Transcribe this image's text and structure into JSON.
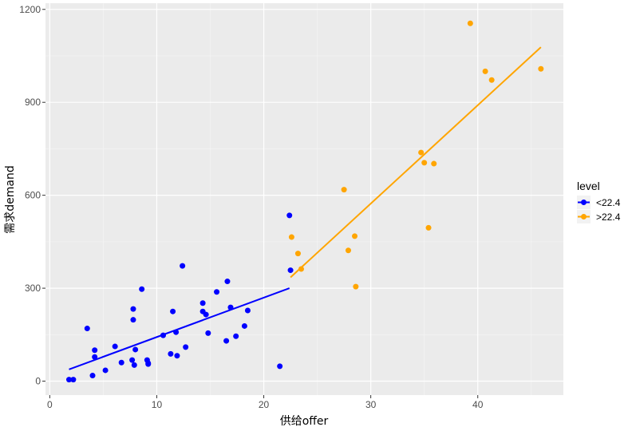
{
  "chart_data": {
    "type": "scatter",
    "xlabel": "供给offer",
    "ylabel": "需求demand",
    "xlim": [
      -0.4,
      48
    ],
    "ylim": [
      -45,
      1220
    ],
    "x_ticks": [
      0,
      10,
      20,
      30,
      40
    ],
    "y_ticks": [
      0,
      300,
      600,
      900,
      1200
    ],
    "grid": true,
    "legend": {
      "title": "level",
      "position": "right"
    },
    "series": [
      {
        "name": "<22.4",
        "color": "#0000FF",
        "points": [
          [
            1.8,
            5
          ],
          [
            2.2,
            5
          ],
          [
            3.5,
            170
          ],
          [
            4.0,
            18
          ],
          [
            4.2,
            100
          ],
          [
            4.2,
            78
          ],
          [
            5.2,
            35
          ],
          [
            6.1,
            112
          ],
          [
            6.7,
            60
          ],
          [
            7.7,
            68
          ],
          [
            7.8,
            233
          ],
          [
            7.8,
            198
          ],
          [
            7.9,
            52
          ],
          [
            8.0,
            102
          ],
          [
            8.6,
            297
          ],
          [
            9.1,
            68
          ],
          [
            9.2,
            58
          ],
          [
            9.2,
            55
          ],
          [
            10.6,
            148
          ],
          [
            11.3,
            88
          ],
          [
            11.5,
            225
          ],
          [
            11.8,
            158
          ],
          [
            11.9,
            82
          ],
          [
            12.4,
            372
          ],
          [
            12.7,
            110
          ],
          [
            14.3,
            252
          ],
          [
            14.3,
            225
          ],
          [
            14.6,
            215
          ],
          [
            14.8,
            155
          ],
          [
            15.6,
            288
          ],
          [
            16.5,
            130
          ],
          [
            16.6,
            322
          ],
          [
            16.9,
            238
          ],
          [
            17.4,
            145
          ],
          [
            18.2,
            178
          ],
          [
            18.5,
            228
          ],
          [
            21.5,
            48
          ],
          [
            22.4,
            535
          ],
          [
            22.5,
            358
          ]
        ],
        "trend": {
          "x": [
            1.8,
            22.4
          ],
          "y": [
            38,
            300
          ]
        }
      },
      {
        "name": ">22.4",
        "color": "#FFA500",
        "points": [
          [
            22.6,
            465
          ],
          [
            23.2,
            412
          ],
          [
            23.5,
            362
          ],
          [
            27.5,
            618
          ],
          [
            27.9,
            422
          ],
          [
            28.5,
            468
          ],
          [
            28.6,
            305
          ],
          [
            34.7,
            738
          ],
          [
            35.0,
            705
          ],
          [
            35.4,
            495
          ],
          [
            35.9,
            702
          ],
          [
            39.3,
            1155
          ],
          [
            40.7,
            1000
          ],
          [
            41.3,
            972
          ],
          [
            45.9,
            1008
          ]
        ],
        "trend": {
          "x": [
            22.5,
            45.9
          ],
          "y": [
            335,
            1078
          ]
        }
      }
    ]
  }
}
